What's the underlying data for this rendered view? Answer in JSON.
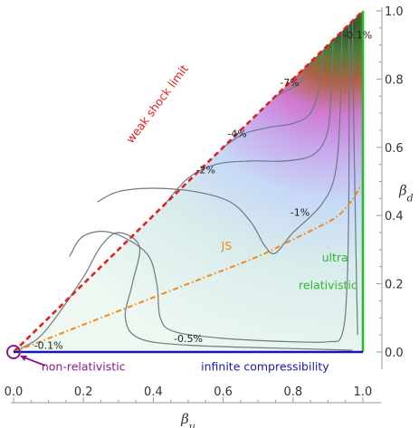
{
  "chart_data": {
    "type": "contour",
    "title": "",
    "xlabel": "βu",
    "ylabel": "βd",
    "xlim": [
      0,
      1
    ],
    "ylim": [
      0,
      1
    ],
    "x_ticks": [
      "0.0",
      "0.2",
      "0.4",
      "0.6",
      "0.8",
      "1.0"
    ],
    "y_ticks": [
      "0.0",
      "0.2",
      "0.4",
      "0.6",
      "0.8",
      "1.0"
    ],
    "grid": false,
    "region": "triangle 0 ≤ βd ≤ βu ≤ 1",
    "contours": [
      {
        "label": "-0.1%",
        "label_at": [
          0.1,
          0.02
        ],
        "points": [
          [
            0.02,
            0.01
          ],
          [
            0.07,
            0.04
          ],
          [
            0.12,
            0.1
          ],
          [
            0.2,
            0.22
          ],
          [
            0.25,
            0.31
          ],
          [
            0.3,
            0.35
          ],
          [
            0.36,
            0.31
          ],
          [
            0.34,
            0.2
          ],
          [
            0.32,
            0.1
          ],
          [
            0.36,
            0.04
          ],
          [
            0.5,
            0.02
          ],
          [
            0.8,
            0.01
          ],
          [
            0.97,
            0.005
          ]
        ]
      },
      {
        "label": "-0.1%",
        "label_at": [
          0.985,
          0.93
        ],
        "points": [
          [
            0.97,
            0.97
          ],
          [
            0.975,
            0.6
          ],
          [
            0.98,
            0.3
          ],
          [
            0.985,
            0.05
          ]
        ]
      },
      {
        "label": "-0.5%",
        "label_at": [
          0.5,
          0.04
        ],
        "points": [
          [
            0.16,
            0.28
          ],
          [
            0.2,
            0.34
          ],
          [
            0.28,
            0.35
          ],
          [
            0.38,
            0.29
          ],
          [
            0.41,
            0.2
          ],
          [
            0.42,
            0.1
          ],
          [
            0.46,
            0.06
          ],
          [
            0.6,
            0.04
          ],
          [
            0.8,
            0.03
          ],
          [
            0.9,
            0.03
          ],
          [
            0.94,
            0.05
          ],
          [
            0.955,
            0.2
          ],
          [
            0.96,
            0.5
          ],
          [
            0.96,
            0.96
          ]
        ]
      },
      {
        "label": "-1%",
        "label_at": [
          0.82,
          0.41
        ],
        "points": [
          [
            0.24,
            0.44
          ],
          [
            0.3,
            0.47
          ],
          [
            0.4,
            0.48
          ],
          [
            0.52,
            0.47
          ],
          [
            0.62,
            0.44
          ],
          [
            0.68,
            0.38
          ],
          [
            0.72,
            0.31
          ],
          [
            0.75,
            0.29
          ],
          [
            0.8,
            0.35
          ],
          [
            0.88,
            0.43
          ],
          [
            0.92,
            0.52
          ],
          [
            0.935,
            0.7
          ],
          [
            0.94,
            0.94
          ]
        ]
      },
      {
        "label": "-2%",
        "label_at": [
          0.55,
          0.535
        ],
        "points": [
          [
            0.43,
            0.43
          ],
          [
            0.5,
            0.51
          ],
          [
            0.58,
            0.55
          ],
          [
            0.68,
            0.56
          ],
          [
            0.78,
            0.56
          ],
          [
            0.86,
            0.58
          ],
          [
            0.9,
            0.65
          ],
          [
            0.91,
            0.8
          ],
          [
            0.915,
            0.915
          ]
        ]
      },
      {
        "label": "-4%",
        "label_at": [
          0.64,
          0.64
        ],
        "points": [
          [
            0.6,
            0.6
          ],
          [
            0.66,
            0.64
          ],
          [
            0.74,
            0.66
          ],
          [
            0.8,
            0.67
          ],
          [
            0.85,
            0.7
          ],
          [
            0.875,
            0.78
          ],
          [
            0.885,
            0.885
          ]
        ]
      },
      {
        "label": "-7%",
        "label_at": [
          0.79,
          0.79
        ],
        "points": [
          [
            0.75,
            0.75
          ],
          [
            0.79,
            0.77
          ],
          [
            0.82,
            0.79
          ],
          [
            0.84,
            0.83
          ],
          [
            0.85,
            0.85
          ]
        ]
      }
    ],
    "series": [
      {
        "name": "weak shock limit",
        "style": "dashed",
        "color": "#e01f1f",
        "points": [
          [
            0,
            0
          ],
          [
            1,
            1
          ]
        ]
      },
      {
        "name": "JS",
        "style": "dash-dot",
        "color": "#f08a1c",
        "points": [
          [
            0,
            0
          ],
          [
            0.2,
            0.08
          ],
          [
            0.4,
            0.16
          ],
          [
            0.55,
            0.22
          ],
          [
            0.7,
            0.28
          ],
          [
            0.8,
            0.33
          ],
          [
            0.88,
            0.37
          ],
          [
            0.93,
            0.4
          ],
          [
            0.965,
            0.44
          ],
          [
            0.985,
            0.47
          ],
          [
            0.995,
            0.49
          ]
        ]
      },
      {
        "name": "ultra relativistic",
        "style": "solid",
        "color": "#2eb82e",
        "points": [
          [
            1,
            0
          ],
          [
            1,
            1
          ]
        ]
      },
      {
        "name": "infinite compressibility",
        "style": "solid",
        "color": "#1818b0",
        "points": [
          [
            0,
            0
          ],
          [
            1,
            0
          ]
        ]
      },
      {
        "name": "non-relativistic",
        "style": "circle-marker",
        "color": "#8b1a8b",
        "points": [
          [
            0,
            0
          ]
        ]
      }
    ],
    "annotations": [
      {
        "text": "weak shock limit",
        "color": "#e01f1f",
        "at": [
          0.42,
          0.72
        ],
        "angle": -53
      },
      {
        "text": "JS",
        "color": "#f08a1c",
        "at": [
          0.61,
          0.3
        ]
      },
      {
        "text": "ultra",
        "color": "#2eb82e",
        "at": [
          0.92,
          0.265
        ]
      },
      {
        "text": "relativistic",
        "color": "#2eb82e",
        "at": [
          0.9,
          0.185
        ]
      },
      {
        "text": "infinite compressibility",
        "color": "#1818b0",
        "at": [
          0.72,
          -0.055
        ]
      },
      {
        "text": "non-relativistic",
        "color": "#8b1a8b",
        "at": [
          0.2,
          -0.055
        ]
      }
    ],
    "colors": {
      "low": "#e6f4ef",
      "mid_blue": "#c7d5f6",
      "pink": "#d48ee0",
      "red": "#c85a4e",
      "dark_green": "#2a5a2a",
      "contour_line": "#6b7a85",
      "axis": "#999999"
    }
  }
}
